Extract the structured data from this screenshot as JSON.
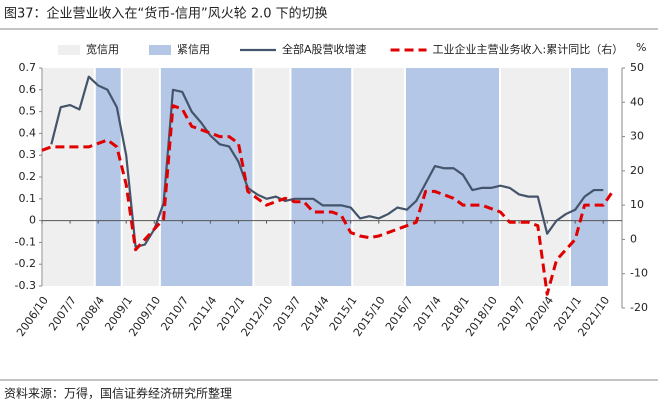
{
  "chart_data": {
    "type": "line",
    "title": "图37：企业营业收入在“货币-信用”风火轮 2.0 下的切换",
    "source": "资料来源：万得，国信证券经济研究所整理",
    "y2label": "%",
    "xlim": [
      2006.75,
      2022.25
    ],
    "xticks": [
      {
        "value": 2006.75,
        "label": "2006/10"
      },
      {
        "value": 2007.5,
        "label": "2007/7"
      },
      {
        "value": 2008.25,
        "label": "2008/4"
      },
      {
        "value": 2009.0,
        "label": "2009/1"
      },
      {
        "value": 2009.75,
        "label": "2009/10"
      },
      {
        "value": 2010.5,
        "label": "2010/7"
      },
      {
        "value": 2011.25,
        "label": "2011/4"
      },
      {
        "value": 2012.0,
        "label": "2012/1"
      },
      {
        "value": 2012.75,
        "label": "2012/10"
      },
      {
        "value": 2013.5,
        "label": "2013/7"
      },
      {
        "value": 2014.25,
        "label": "2014/4"
      },
      {
        "value": 2015.0,
        "label": "2015/1"
      },
      {
        "value": 2015.75,
        "label": "2015/10"
      },
      {
        "value": 2016.5,
        "label": "2016/7"
      },
      {
        "value": 2017.25,
        "label": "2017/4"
      },
      {
        "value": 2018.0,
        "label": "2018/1"
      },
      {
        "value": 2018.75,
        "label": "2018/10"
      },
      {
        "value": 2019.5,
        "label": "2019/7"
      },
      {
        "value": 2020.25,
        "label": "2020/4"
      },
      {
        "value": 2021.0,
        "label": "2021/1"
      },
      {
        "value": 2021.75,
        "label": "2021/10"
      }
    ],
    "ylim": [
      -0.3,
      0.7
    ],
    "yticks": [
      -0.3,
      -0.2,
      -0.1,
      0,
      0.1,
      0.2,
      0.3,
      0.4,
      0.5,
      0.6,
      0.7
    ],
    "y2lim": [
      -20,
      50
    ],
    "y2ticks": [
      -20,
      -10,
      0,
      10,
      20,
      30,
      40,
      50
    ],
    "periods": [
      {
        "name": "宽信用",
        "color": "#efefef",
        "spans": [
          [
            2006.75,
            2008.16
          ],
          [
            2008.88,
            2009.9
          ],
          [
            2012.4,
            2013.39
          ],
          [
            2015.04,
            2016.45
          ],
          [
            2018.99,
            2020.86
          ]
        ]
      },
      {
        "name": "紧信用",
        "color": "#b4c7e7",
        "spans": [
          [
            2008.16,
            2008.88
          ],
          [
            2009.9,
            2012.4
          ],
          [
            2013.39,
            2015.04
          ],
          [
            2016.45,
            2018.99
          ],
          [
            2020.86,
            2021.9
          ]
        ]
      }
    ],
    "series": [
      {
        "name": "全部A股营收增速",
        "color": "#44546a",
        "dashed": false,
        "x": [
          2007,
          2007.25,
          2007.5,
          2007.75,
          2008,
          2008.25,
          2008.5,
          2008.75,
          2009,
          2009.25,
          2009.5,
          2009.75,
          2010,
          2010.25,
          2010.5,
          2010.75,
          2011,
          2011.25,
          2011.5,
          2011.75,
          2012,
          2012.25,
          2012.5,
          2012.75,
          2013,
          2013.25,
          2013.5,
          2013.75,
          2014,
          2014.25,
          2014.5,
          2014.75,
          2015,
          2015.25,
          2015.5,
          2015.75,
          2016,
          2016.25,
          2016.5,
          2016.75,
          2017,
          2017.25,
          2017.5,
          2017.75,
          2018,
          2018.25,
          2018.5,
          2018.75,
          2019,
          2019.25,
          2019.5,
          2019.75,
          2020,
          2020.25,
          2020.5,
          2020.75,
          2021,
          2021.25,
          2021.5,
          2021.75
        ],
        "values": [
          0.35,
          0.52,
          0.53,
          0.51,
          0.66,
          0.62,
          0.6,
          0.52,
          0.3,
          -0.12,
          -0.11,
          -0.04,
          0.08,
          0.6,
          0.59,
          0.5,
          0.45,
          0.39,
          0.35,
          0.34,
          0.27,
          0.15,
          0.12,
          0.1,
          0.11,
          0.09,
          0.1,
          0.1,
          0.1,
          0.07,
          0.07,
          0.07,
          0.06,
          0.01,
          0.02,
          0.01,
          0.03,
          0.06,
          0.05,
          0.09,
          0.17,
          0.25,
          0.24,
          0.24,
          0.21,
          0.14,
          0.15,
          0.15,
          0.16,
          0.15,
          0.12,
          0.11,
          0.11,
          -0.06,
          0,
          0.03,
          0.05,
          0.11,
          0.14,
          0.14
        ]
      },
      {
        "name": "工业企业主营业务收入:累计同比（右）",
        "color": "#e00000",
        "dashed": true,
        "axis": "y2",
        "x": [
          2006.75,
          2007,
          2007.25,
          2007.5,
          2007.75,
          2008,
          2008.25,
          2008.5,
          2008.75,
          2009,
          2009.25,
          2009.5,
          2009.75,
          2010,
          2010.25,
          2010.5,
          2010.75,
          2011,
          2011.25,
          2011.5,
          2011.75,
          2012,
          2012.25,
          2012.5,
          2012.75,
          2013,
          2013.25,
          2013.5,
          2013.75,
          2014,
          2014.25,
          2014.5,
          2014.75,
          2015,
          2015.25,
          2015.5,
          2015.75,
          2016,
          2016.25,
          2016.5,
          2016.75,
          2017,
          2017.25,
          2017.5,
          2017.75,
          2018,
          2018.25,
          2018.5,
          2018.75,
          2019,
          2019.25,
          2019.5,
          2019.75,
          2020,
          2020.25,
          2020.5,
          2020.75,
          2021,
          2021.25,
          2021.5,
          2021.75,
          2022
        ],
        "values": [
          26,
          27,
          27,
          27,
          27,
          27,
          28,
          29,
          27,
          16,
          -3,
          0,
          3,
          6,
          39,
          38,
          33,
          32,
          31,
          30,
          30,
          28,
          14,
          12,
          10,
          11,
          12,
          11,
          11,
          8,
          8,
          8,
          7,
          2,
          1,
          0.5,
          1,
          2,
          3,
          4,
          5,
          14,
          14,
          13,
          12,
          10,
          10,
          10,
          9,
          8,
          5,
          5,
          5,
          4,
          -16,
          -6,
          -3,
          0,
          10,
          10,
          10,
          14
        ]
      }
    ]
  }
}
